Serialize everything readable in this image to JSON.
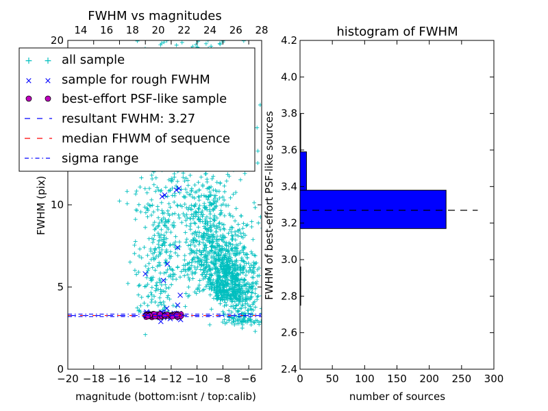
{
  "chart_data": [
    {
      "type": "scatter",
      "title": "FWHM vs magnitudes",
      "xlabel": "magnitude (bottom:isnt / top:calib)",
      "ylabel": "FWHM (pix)",
      "xlim": [
        -20,
        -5
      ],
      "ylim": [
        0,
        20
      ],
      "x_ticks": [
        -20,
        -18,
        -16,
        -14,
        -12,
        -10,
        -8,
        -6
      ],
      "y_ticks": [
        0,
        5,
        10
      ],
      "top_xlim": [
        13,
        28
      ],
      "top_x_ticks": [
        14,
        16,
        18,
        20,
        22,
        24,
        26,
        28
      ],
      "grid": false,
      "legend_placement": "upper-left",
      "series": [
        {
          "name": "all sample",
          "marker": "+",
          "color": "#00bfbf",
          "description_points": [
            [
              -14,
              2.1
            ],
            [
              -13.8,
              6.0
            ],
            [
              -13.5,
              11.8
            ],
            [
              -12.8,
              13.3
            ],
            [
              -11.0,
              14.5
            ],
            [
              -9.0,
              8.0
            ],
            [
              -8.5,
              5.0
            ],
            [
              -8.0,
              3.5
            ],
            [
              -6.5,
              2.5
            ],
            [
              -5.5,
              2.3
            ],
            [
              -9.3,
              19.8
            ],
            [
              -8.0,
              19.9
            ]
          ]
        },
        {
          "name": "sample for rough FWHM",
          "marker": "x",
          "color": "#0000ff",
          "description_points": [
            [
              -14.0,
              5.8
            ],
            [
              -12.5,
              10.6
            ],
            [
              -12.7,
              10.5
            ],
            [
              -11.4,
              11.0
            ],
            [
              -11.6,
              10.9
            ],
            [
              -12.3,
              6.4
            ],
            [
              -12.6,
              5.4
            ],
            [
              -11.5,
              7.4
            ],
            [
              -11.3,
              4.5
            ],
            [
              -11.5,
              3.9
            ],
            [
              -12.8,
              2.9
            ]
          ]
        },
        {
          "name": "best-effort PSF-like sample",
          "marker": "o",
          "color": "#bf00bf",
          "x_range": [
            -14,
            -11.2
          ],
          "y_value": 3.27
        },
        {
          "name": "resultant FWHM: 3.27",
          "style": "dashed",
          "color": "#0000ff",
          "y": 3.27
        },
        {
          "name": "median FHWM of sequence",
          "style": "dashed",
          "color": "#ff0000",
          "y": 3.27
        },
        {
          "name": "sigma range",
          "style": "dashdot",
          "color": "#0000ff",
          "y": [
            3.2,
            3.35
          ]
        }
      ]
    },
    {
      "type": "bar",
      "orientation": "horizontal",
      "title": "histogram of FWHM",
      "xlabel": "number of sources",
      "ylabel": "FWHM of best-effort PSF-like sources",
      "xlim": [
        0,
        300
      ],
      "ylim": [
        2.4,
        4.2
      ],
      "x_ticks": [
        0,
        50,
        100,
        150,
        200,
        250,
        300
      ],
      "y_ticks": [
        2.4,
        2.6,
        2.8,
        3.0,
        3.2,
        3.4,
        3.6,
        3.8,
        4.0,
        4.2
      ],
      "bins": [
        {
          "y0": 2.75,
          "y1": 2.96,
          "value": 1
        },
        {
          "y0": 2.96,
          "y1": 3.17,
          "value": 0
        },
        {
          "y0": 3.17,
          "y1": 3.38,
          "value": 226
        },
        {
          "y0": 3.38,
          "y1": 3.59,
          "value": 10
        },
        {
          "y0": 3.59,
          "y1": 3.8,
          "value": 1
        }
      ],
      "reference_line": {
        "y": 3.27,
        "style": "dashed",
        "color": "#000000"
      }
    }
  ]
}
